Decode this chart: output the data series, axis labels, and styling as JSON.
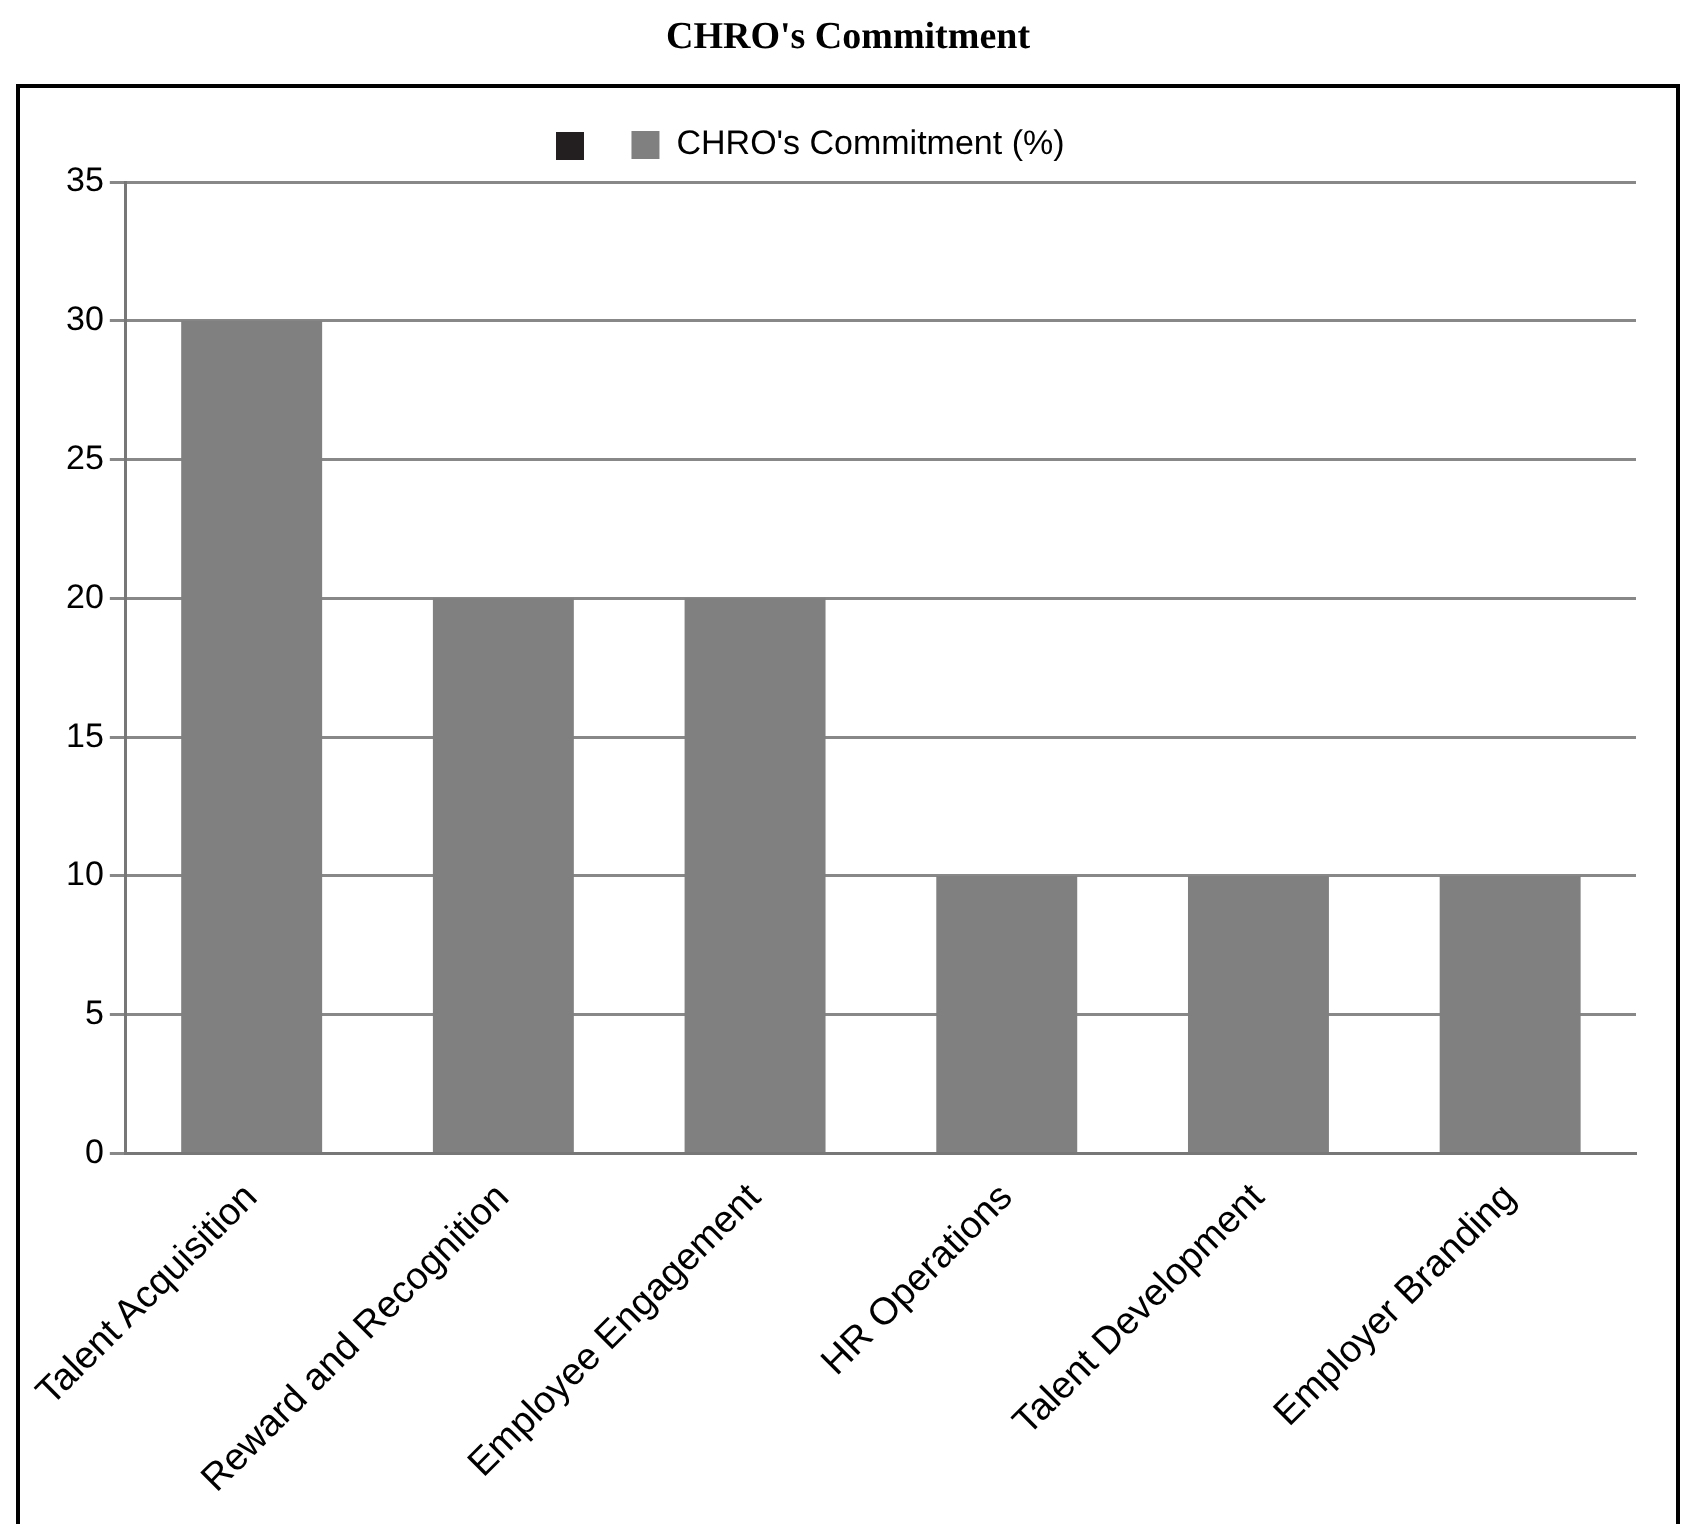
{
  "chart_data": {
    "type": "bar",
    "title": "CHRO's Commitment",
    "categories": [
      "Talent Acquisition",
      "Reward and Recognition",
      "Employee Engagement",
      "HR Operations",
      "Talent Development",
      "Employer Branding"
    ],
    "series": [
      {
        "name": "CHRO's Commitment (%)",
        "color": "#808080",
        "values": [
          30,
          20,
          20,
          10,
          10,
          10
        ]
      }
    ],
    "ylim": [
      0,
      35
    ],
    "yticks": [
      0,
      5,
      10,
      15,
      20,
      25,
      30,
      35
    ],
    "grid": "y",
    "legend": "top"
  }
}
